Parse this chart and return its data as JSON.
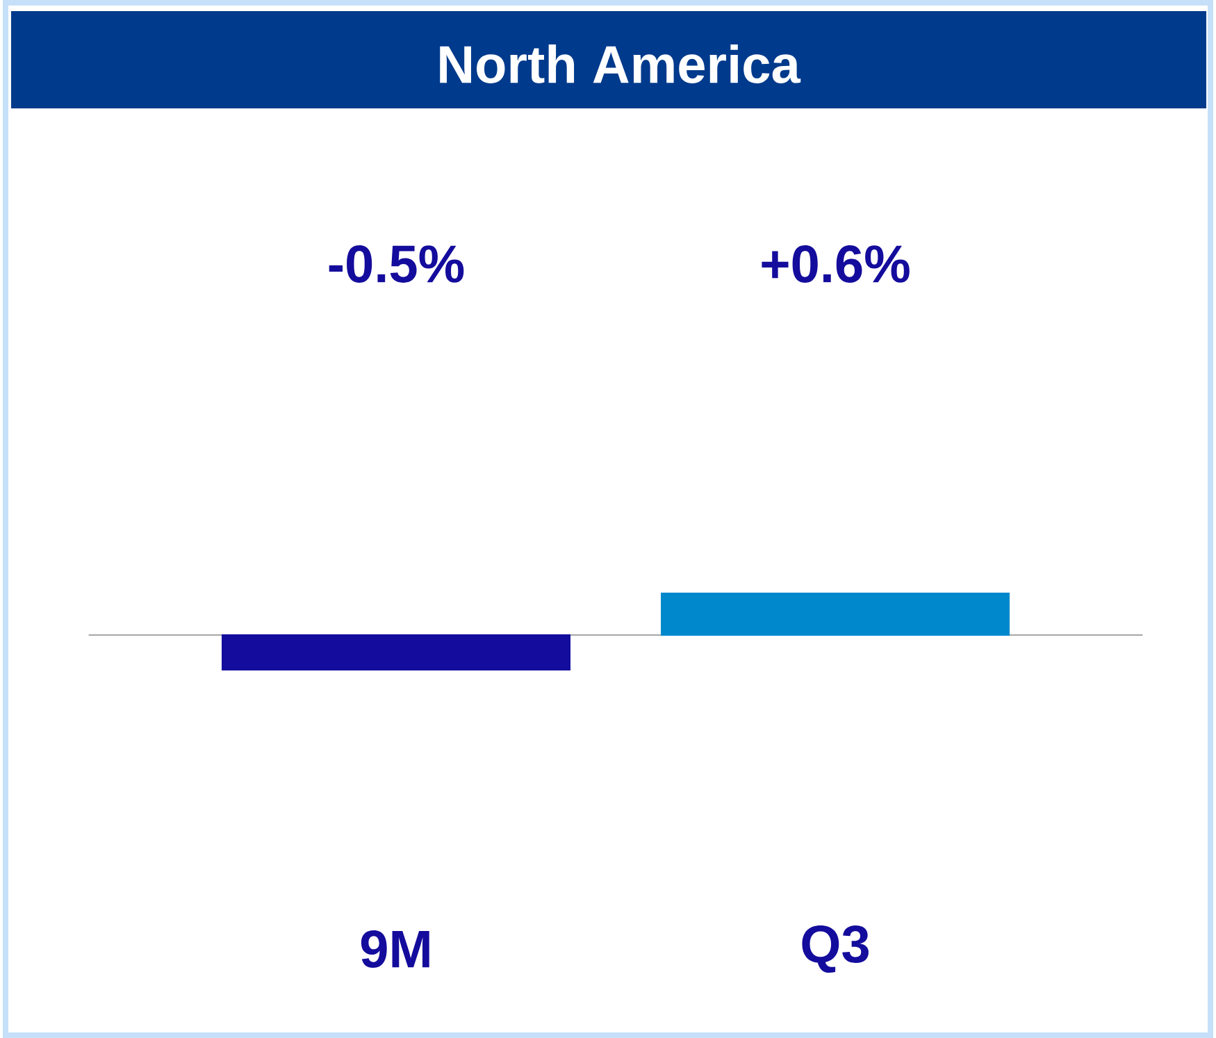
{
  "chart_data": {
    "type": "bar",
    "title": "North America",
    "categories": [
      "9M",
      "Q3"
    ],
    "values": [
      -0.5,
      0.6
    ],
    "colors": [
      "#140c9c",
      "#0088cc"
    ],
    "value_labels": [
      "-0.5%",
      "+0.6%"
    ]
  }
}
